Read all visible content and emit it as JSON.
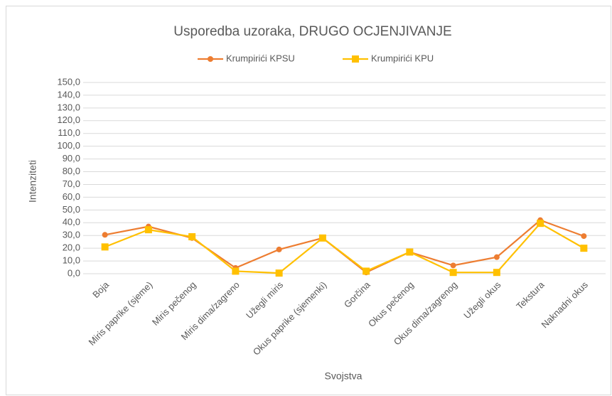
{
  "chart_data": {
    "type": "line",
    "title": "Usporedba uzoraka, DRUGO OCJENJIVANJE",
    "x_label": "Svojstva",
    "y_label": "Intenziteti",
    "categories": [
      "Boja",
      "Miris paprike (sjeme)",
      "Miris pečenog",
      "Miris dima/zagreno",
      "Užegli miris",
      "Okus paprike (sjemenki)",
      "Gorčina",
      "Okus pečenog",
      "Okus dima/zagrenog",
      "Užegli okus",
      "Tekstura",
      "Naknadni okus"
    ],
    "series": [
      {
        "name": "Krumpirići KPSU",
        "color": "#ed7d31",
        "marker": "circle",
        "values": [
          30.5,
          37,
          28,
          4.5,
          19,
          28,
          1,
          17,
          6.5,
          13,
          42,
          29.5
        ]
      },
      {
        "name": "Krumpirići KPU",
        "color": "#ffc000",
        "marker": "square",
        "values": [
          21,
          34.5,
          29,
          2,
          0.5,
          28,
          2,
          17,
          1,
          1,
          39.5,
          20
        ]
      }
    ],
    "ylim": [
      0,
      150
    ],
    "yticks": [
      {
        "value": 0,
        "label": "0,0"
      },
      {
        "value": 10,
        "label": "10,0"
      },
      {
        "value": 20,
        "label": "20,0"
      },
      {
        "value": 30,
        "label": "30,0"
      },
      {
        "value": 40,
        "label": "40,0"
      },
      {
        "value": 50,
        "label": "50,0"
      },
      {
        "value": 60,
        "label": "60,0"
      },
      {
        "value": 70,
        "label": "70,0"
      },
      {
        "value": 80,
        "label": "80,0"
      },
      {
        "value": 90,
        "label": "90,0"
      },
      {
        "value": 100,
        "label": "100,0"
      },
      {
        "value": 110,
        "label": "110,0"
      },
      {
        "value": 120,
        "label": "120,0"
      },
      {
        "value": 130,
        "label": "130,0"
      },
      {
        "value": 140,
        "label": "140,0"
      },
      {
        "value": 150,
        "label": "150,0"
      }
    ],
    "grid": true,
    "legend": "top"
  }
}
